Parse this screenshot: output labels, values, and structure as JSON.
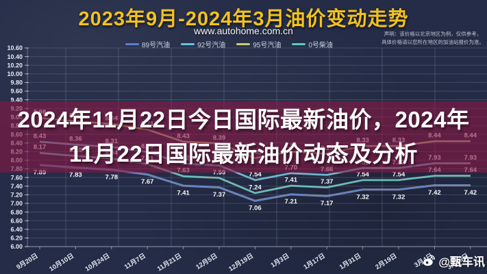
{
  "header": {
    "title": "2023年9月-2024年3月油价变动走势",
    "url": "www.autohome.com.cn",
    "disclaimer_line1": "声明：该价格以北京地区为例，仅供参考，",
    "disclaimer_line2": "具体价格请以您所在地区的加油站报价为准。"
  },
  "overlay": {
    "line1": "2024年11月22日今日国际最新油价，2024年",
    "line2": "11月22日国际最新油价动态及分析"
  },
  "watermark": {
    "icon": "weibo-icon",
    "text": "@甄车讯"
  },
  "chart_data": {
    "type": "line",
    "title": "2023年9月-2024年3月油价变动走势",
    "categories": [
      "9月20日",
      "10月10日",
      "10月24日",
      "11月7日",
      "11月21日",
      "12月5日",
      "12月19日",
      "1月3日",
      "1月17日",
      "1月31日",
      "2月19日",
      "3月4日",
      "3月18日"
    ],
    "series": [
      {
        "name": "89号汽油",
        "color": "#5b7fd4",
        "label_position": "below",
        "values": [
          7.89,
          7.83,
          7.78,
          7.67,
          7.41,
          7.37,
          7.06,
          7.21,
          7.17,
          7.32,
          7.32,
          7.42,
          7.42
        ]
      },
      {
        "name": "92号汽油",
        "color": "#64c2e8",
        "label_position": "above",
        "values": [
          8.43,
          8.36,
          8.31,
          8.19,
          7.92,
          7.88,
          7.54,
          7.7,
          7.66,
          7.82,
          7.82,
          7.93,
          7.93
        ]
      },
      {
        "name": "95号汽油",
        "color": "#c6d06e",
        "label_position": "above",
        "values": [
          8.98,
          8.9,
          8.84,
          8.71,
          8.43,
          8.39,
          8.05,
          8.2,
          8.15,
          8.33,
          8.33,
          8.44,
          8.44
        ]
      },
      {
        "name": "0号柴油",
        "color": "#58cfc0",
        "label_position": "above",
        "values": [
          8.17,
          8.1,
          8.04,
          7.91,
          7.63,
          7.59,
          7.24,
          7.41,
          7.37,
          7.54,
          7.54,
          7.64,
          7.64
        ]
      }
    ],
    "xlabel": "",
    "ylabel": "",
    "ylim": [
      6.0,
      10.6
    ],
    "ytick_step": 0.2,
    "grid": true,
    "legend_position": "top"
  }
}
